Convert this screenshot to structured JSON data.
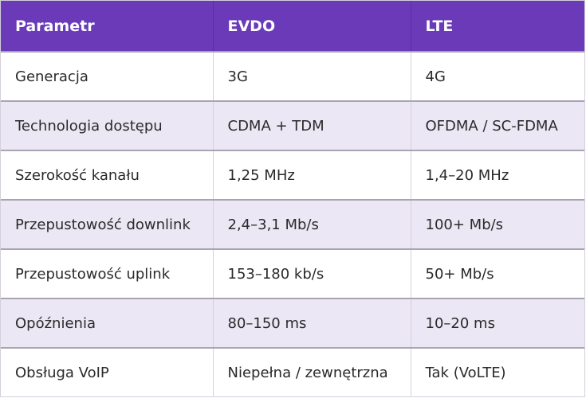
{
  "table": {
    "headers": [
      "Parametr",
      "EVDO",
      "LTE"
    ],
    "rows": [
      [
        "Generacja",
        "3G",
        "4G"
      ],
      [
        "Technologia dostępu",
        "CDMA + TDM",
        "OFDMA / SC-FDMA"
      ],
      [
        "Szerokość kanału",
        "1,25 MHz",
        "1,4–20 MHz"
      ],
      [
        "Przepustowość downlink",
        "2,4–3,1 Mb/s",
        "100+ Mb/s"
      ],
      [
        "Przepustowość uplink",
        "153–180 kb/s",
        "50+ Mb/s"
      ],
      [
        "Opóźnienia",
        "80–150 ms",
        "10–20 ms"
      ],
      [
        "Obsługa VoIP",
        "Niepełna / zewnętrzna",
        "Tak (VoLTE)"
      ]
    ]
  },
  "colors": {
    "header_bg": "#6a3ab8",
    "header_text": "#ffffff",
    "stripe_bg": "#ece7f4",
    "row_divider": "#a9a4b3"
  }
}
